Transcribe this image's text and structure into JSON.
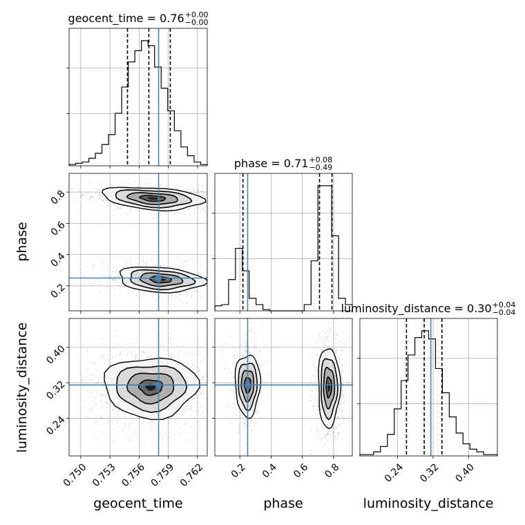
{
  "chart_data": {
    "type": "corner",
    "params": [
      "geocent_time",
      "phase",
      "luminosity_distance"
    ],
    "truths": {
      "geocent_time": 0.758,
      "phase": 0.25,
      "luminosity_distance": 0.315
    },
    "ranges": {
      "geocent_time": [
        0.7488,
        0.763
      ],
      "phase": [
        0.04,
        0.92
      ],
      "luminosity_distance": [
        0.155,
        0.465
      ]
    },
    "ticks": {
      "geocent_time": [
        "0.750",
        "0.753",
        "0.756",
        "0.759",
        "0.762"
      ],
      "phase": [
        "0.2",
        "0.4",
        "0.6",
        "0.8"
      ],
      "luminosity_distance": [
        "0.24",
        "0.32",
        "0.40"
      ]
    },
    "tick_values": {
      "geocent_time": [
        0.75,
        0.753,
        0.756,
        0.759,
        0.762
      ],
      "phase": [
        0.2,
        0.4,
        0.6,
        0.8
      ],
      "luminosity_distance": [
        0.24,
        0.32,
        0.4
      ]
    },
    "titles": {
      "geocent_time": {
        "label": "geocent_time = 0.76",
        "plus": "+0.00",
        "minus": "−0.00"
      },
      "phase": {
        "label": "phase = 0.71",
        "plus": "+0.08",
        "minus": "−0.49"
      },
      "luminosity_distance": {
        "label": "luminosity_distance = 0.30",
        "plus": "+0.04",
        "minus": "−0.04"
      }
    },
    "axis_labels": {
      "x_geocent_time": "geocent_time",
      "x_phase": "phase",
      "x_luminosity_distance": "luminosity_distance",
      "y_phase": "phase",
      "y_luminosity_distance": "luminosity_distance"
    },
    "quantiles": {
      "geocent_time": [
        0.7548,
        0.757,
        0.7592
      ],
      "phase": [
        0.22,
        0.71,
        0.79
      ],
      "luminosity_distance": [
        0.26,
        0.3,
        0.34
      ]
    },
    "hist": {
      "geocent_time": {
        "range": [
          0.7488,
          0.763
        ],
        "counts": [
          1,
          2,
          3,
          6,
          10,
          17,
          25,
          42,
          63,
          83,
          92,
          100,
          96,
          79,
          62,
          44,
          28,
          15,
          8,
          3,
          1
        ]
      },
      "phase": {
        "range": [
          0.04,
          0.92
        ],
        "counts": [
          4,
          5,
          25,
          50,
          32,
          10,
          5,
          1,
          0,
          0,
          0,
          0,
          0,
          5,
          40,
          100,
          100,
          60,
          10,
          5
        ]
      },
      "luminosity_distance": {
        "range": [
          0.155,
          0.465
        ],
        "counts": [
          1,
          1,
          3,
          7,
          16,
          35,
          56,
          75,
          88,
          93,
          87,
          65,
          47,
          29,
          17,
          9,
          5,
          3,
          1,
          1
        ]
      }
    },
    "modes": [
      {
        "x": "geocent_time",
        "y": "phase",
        "cx": 0.7574,
        "cy": 0.76,
        "sx": 0.0026,
        "sy": 0.035,
        "tilt": -0.3,
        "w": 0.55
      },
      {
        "x": "geocent_time",
        "y": "phase",
        "cx": 0.7582,
        "cy": 0.24,
        "sx": 0.0022,
        "sy": 0.04,
        "tilt": -0.2,
        "w": 0.45
      },
      {
        "x": "geocent_time",
        "y": "luminosity_distance",
        "cx": 0.7572,
        "cy": 0.31,
        "sx": 0.0024,
        "sy": 0.034,
        "tilt": 0,
        "w": 1
      },
      {
        "x": "phase",
        "y": "luminosity_distance",
        "cx": 0.25,
        "cy": 0.315,
        "sx": 0.04,
        "sy": 0.035,
        "tilt": 0,
        "w": 0.4
      },
      {
        "x": "phase",
        "y": "luminosity_distance",
        "cx": 0.77,
        "cy": 0.31,
        "sx": 0.035,
        "sy": 0.045,
        "tilt": 0,
        "w": 0.6
      }
    ],
    "truth_color": "#4682b4",
    "grid": true
  }
}
